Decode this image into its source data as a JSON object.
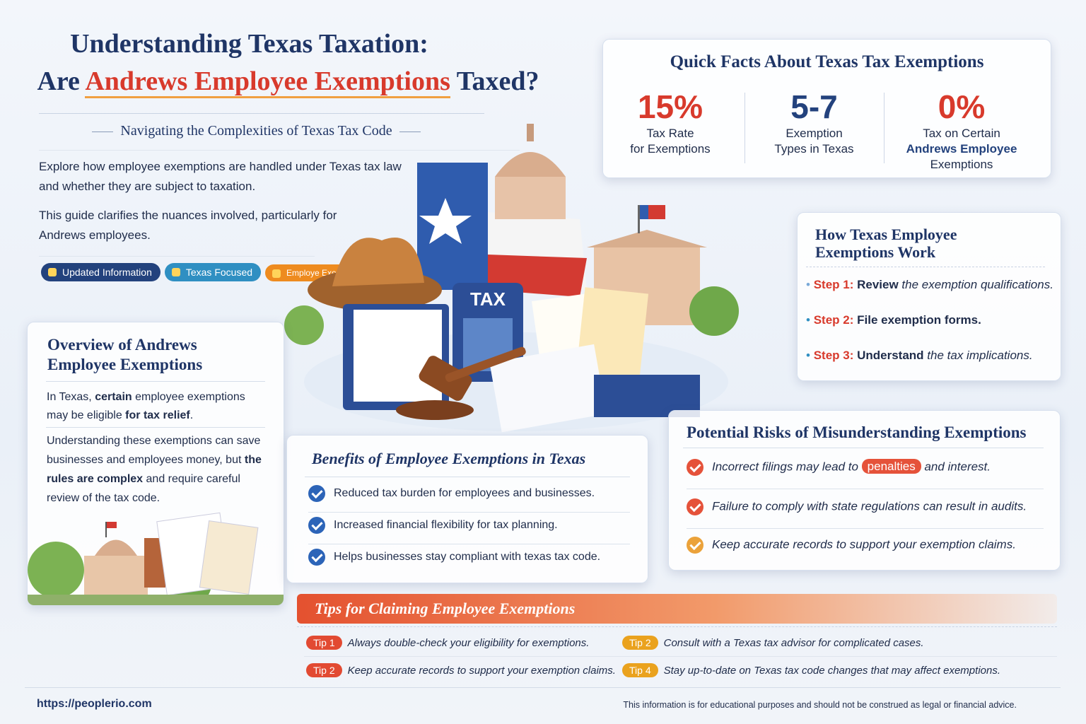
{
  "header": {
    "title_line1": "Understanding Texas Taxation:",
    "title_line2": [
      "Are ",
      "Andrews Employee Exemptions",
      " Taxed?"
    ],
    "subtitle": "Navigating the Complexities of Texas Tax Code"
  },
  "intro": {
    "paragraphs": [
      "Explore how employee exemptions are handled under Texas tax law and whether they are subject to taxation.",
      "This guide clarifies the nuances involved, particularly for Andrews employees."
    ],
    "badges": [
      "Updated Information",
      "Texas Focused",
      "Employe Exemptions"
    ]
  },
  "quick_facts": {
    "title": "Quick Facts About Texas Tax Exemptions",
    "facts": [
      {
        "value": "15%",
        "label": [
          "Tax Rate",
          "for Exemptions"
        ]
      },
      {
        "value": "5-7",
        "label": [
          "Exemption",
          "Types in Texas"
        ]
      },
      {
        "value": "0%",
        "label": [
          "Tax on Certain",
          "Andrews Employee",
          "Exemptions"
        ]
      }
    ]
  },
  "how_it_works": {
    "title": "How Texas Employee Exemptions Work",
    "steps": [
      [
        "Step 1:",
        "Review",
        " the exemption qualifications."
      ],
      [
        "Step 2:",
        "File exemption forms.",
        ""
      ],
      [
        "Step 3:",
        "Understand",
        " the tax implications."
      ]
    ]
  },
  "illustration": {
    "calculator_label": "TAX"
  },
  "overview": {
    "title": "Overview of Andrews Employee Exemptions",
    "paragraphs": [
      [
        "In Texas, ",
        "certain",
        " employee exemptions may be eligible ",
        "for tax relief",
        "."
      ],
      [
        "Understanding these exemptions can save businesses and employees money, but ",
        "the rules are complex",
        " and require careful review of the tax code."
      ]
    ]
  },
  "benefits": {
    "title": "Benefits of Employee Exemptions in Texas",
    "items": [
      "Reduced tax burden for employees and businesses.",
      "Increased financial flexibility for tax planning.",
      "Helps businesses stay compliant with texas tax code."
    ]
  },
  "risks": {
    "title": "Potential Risks of Misunderstanding Exemptions",
    "items": [
      [
        "Incorrect filings may lead to ",
        "penalties",
        " and interest."
      ],
      [
        "Failure to comply with state regulations can result in audits."
      ],
      [
        "Keep accurate records to support your exemption claims."
      ]
    ]
  },
  "tips": {
    "title": "Tips for Claiming Employee Exemptions",
    "items": [
      {
        "tag": "Tip 1",
        "text": "Always double-check your eligibility for exemptions."
      },
      {
        "tag": "Tip 2",
        "text": "Consult with a Texas tax advisor for complicated cases."
      },
      {
        "tag": "Tip 2",
        "text": "Keep accurate records to support your exemption claims."
      },
      {
        "tag": "Tip 4",
        "text": "Stay up-to-date on Texas tax code changes that may affect exemptions."
      }
    ]
  },
  "footer": {
    "url": "https://peoplerio.com",
    "disclaimer": "This information is for educational purposes and should not be construed as legal or financial advice."
  }
}
